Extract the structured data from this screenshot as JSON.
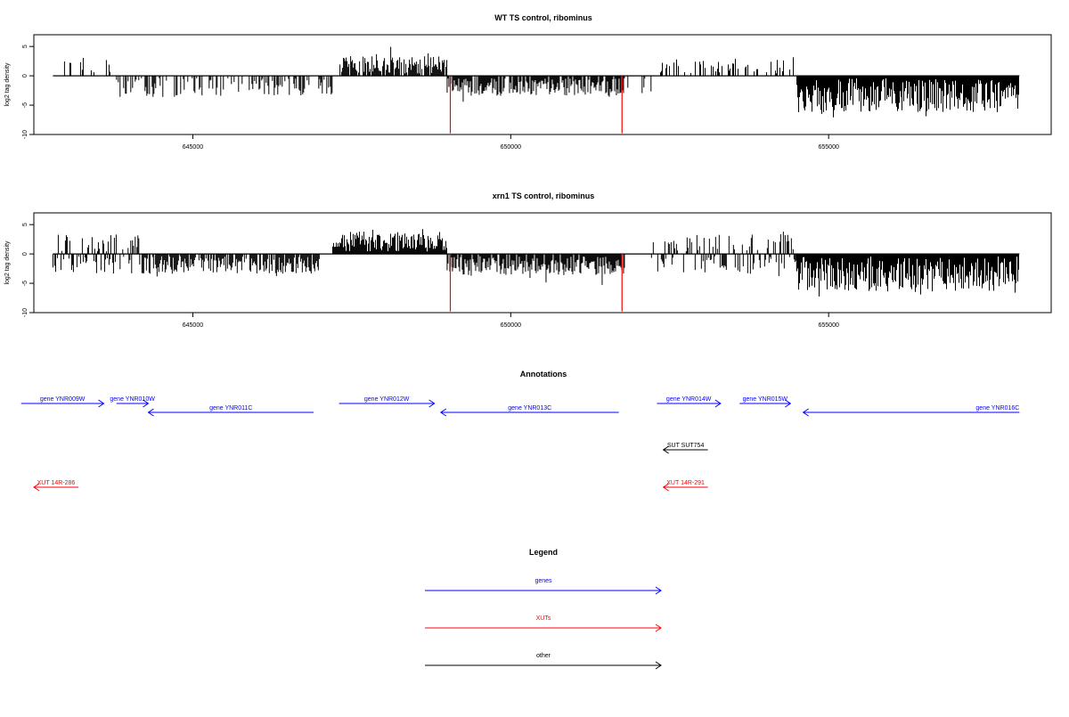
{
  "chart_data": [
    {
      "type": "bar",
      "title": "WT TS control, ribominus",
      "ylabel": "log2 tag density",
      "xlabel": "",
      "xlim": [
        642500,
        658500
      ],
      "ylim": [
        -10,
        7
      ],
      "xticks": [
        645000,
        650000,
        655000
      ],
      "yticks": [
        5,
        0,
        -5,
        -10
      ],
      "ytick_labels": [
        "5",
        "0",
        "-5",
        "-10"
      ],
      "baseline_range": [
        642800,
        658000
      ],
      "red_markers": [
        649050,
        651750
      ],
      "segments": [
        {
          "from": 642800,
          "to": 643700,
          "mode": "pos",
          "density": 0.15,
          "amp": 2.3
        },
        {
          "from": 643800,
          "to": 647200,
          "mode": "neg",
          "density": 0.45,
          "amp": 3.2
        },
        {
          "from": 647300,
          "to": 649000,
          "mode": "pos",
          "density": 0.85,
          "amp": 3.0
        },
        {
          "from": 649000,
          "to": 651800,
          "mode": "neg",
          "density": 0.85,
          "amp": 3.0
        },
        {
          "from": 651800,
          "to": 652500,
          "mode": "neg",
          "density": 0.1,
          "amp": 2.5
        },
        {
          "from": 652300,
          "to": 654500,
          "mode": "pos",
          "density": 0.3,
          "amp": 2.4
        },
        {
          "from": 654500,
          "to": 658000,
          "mode": "neg",
          "density": 1.0,
          "amp": 5.8
        }
      ]
    },
    {
      "type": "bar",
      "title": "xrn1 TS control, ribominus",
      "ylabel": "log2 tag density",
      "xlabel": "",
      "xlim": [
        642500,
        658500
      ],
      "ylim": [
        -10,
        7
      ],
      "xticks": [
        645000,
        650000,
        655000
      ],
      "yticks": [
        5,
        0,
        -5,
        -10
      ],
      "ytick_labels": [
        "5",
        "0",
        "-5",
        "-10"
      ],
      "baseline_range": [
        642800,
        658000
      ],
      "red_markers": [
        649050,
        651750
      ],
      "segments": [
        {
          "from": 642800,
          "to": 643800,
          "mode": "mix",
          "density": 0.7,
          "amp": 3.0
        },
        {
          "from": 643800,
          "to": 644200,
          "mode": "mix",
          "density": 0.5,
          "amp": 3.0
        },
        {
          "from": 644200,
          "to": 647000,
          "mode": "neg",
          "density": 0.75,
          "amp": 3.0
        },
        {
          "from": 647200,
          "to": 649000,
          "mode": "pos",
          "density": 1.0,
          "amp": 3.5
        },
        {
          "from": 649000,
          "to": 651800,
          "mode": "neg",
          "density": 0.9,
          "amp": 3.2
        },
        {
          "from": 652200,
          "to": 654500,
          "mode": "mix",
          "density": 0.6,
          "amp": 3.0
        },
        {
          "from": 654500,
          "to": 658000,
          "mode": "neg",
          "density": 1.0,
          "amp": 6.0
        }
      ]
    }
  ],
  "annotations": {
    "title": "Annotations",
    "items": [
      {
        "label": "gene YNR009W",
        "row": 0,
        "dir": "right",
        "from": 642300,
        "to": 643600,
        "color": "#0000ff"
      },
      {
        "label": "gene YNR010W",
        "row": 0,
        "dir": "right",
        "from": 643800,
        "to": 644300,
        "color": "#0000ff"
      },
      {
        "label": "gene YNR011C",
        "row": 1,
        "dir": "left",
        "from": 644300,
        "to": 646900,
        "color": "#0000ff"
      },
      {
        "label": "gene YNR012W",
        "row": 0,
        "dir": "right",
        "from": 647300,
        "to": 648800,
        "color": "#0000ff"
      },
      {
        "label": "gene YNR013C",
        "row": 1,
        "dir": "left",
        "from": 648900,
        "to": 651700,
        "color": "#0000ff"
      },
      {
        "label": "gene YNR014W",
        "row": 0,
        "dir": "right",
        "from": 652300,
        "to": 653300,
        "color": "#0000ff"
      },
      {
        "label": "gene YNR015W",
        "row": 0,
        "dir": "right",
        "from": 653600,
        "to": 654400,
        "color": "#0000ff"
      },
      {
        "label": "gene YNR016C",
        "row": 1,
        "dir": "left",
        "from": 654600,
        "to": 658000,
        "color": "#0000ff",
        "label_at": "end"
      },
      {
        "label": "SUT SUT754",
        "row": 2,
        "dir": "left",
        "from": 652400,
        "to": 653100,
        "color": "#000000"
      },
      {
        "label": "XUT 14R-286",
        "row": 3,
        "dir": "left",
        "from": 642500,
        "to": 643200,
        "color": "#ff0000"
      },
      {
        "label": "XUT 14R-291",
        "row": 3,
        "dir": "left",
        "from": 652400,
        "to": 653100,
        "color": "#ff0000"
      }
    ]
  },
  "legend": {
    "title": "Legend",
    "items": [
      {
        "label": "genes",
        "color": "#0000ff"
      },
      {
        "label": "XUTs",
        "color": "#ff0000"
      },
      {
        "label": "other",
        "color": "#000000"
      }
    ]
  }
}
